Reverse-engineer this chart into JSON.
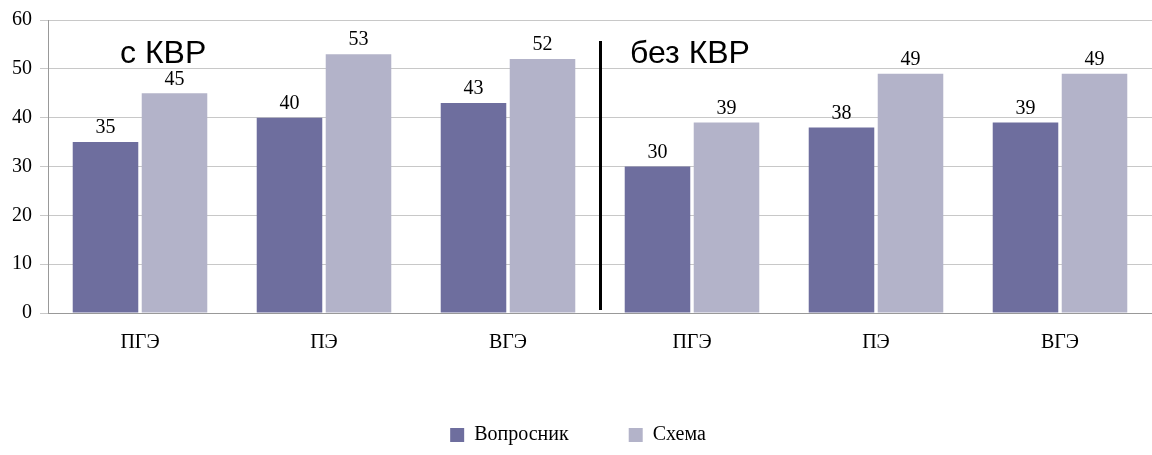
{
  "chart_data": {
    "type": "bar",
    "categories": [
      "ПГЭ",
      "ПЭ",
      "ВГЭ",
      "ПГЭ",
      "ПЭ",
      "ВГЭ"
    ],
    "series": [
      {
        "name": "Вопросник",
        "color": "#6e6e9e",
        "values": [
          35,
          40,
          43,
          30,
          38,
          39
        ]
      },
      {
        "name": "Схема",
        "color": "#b3b3c9",
        "values": [
          45,
          53,
          52,
          39,
          49,
          49
        ]
      }
    ],
    "ylim": [
      0,
      60
    ],
    "yticks": [
      0,
      10,
      20,
      30,
      40,
      50,
      60
    ],
    "grid": "y",
    "legend": "bottom",
    "data_labels": true,
    "annotations": [
      "с КВР",
      "без КВР"
    ]
  }
}
